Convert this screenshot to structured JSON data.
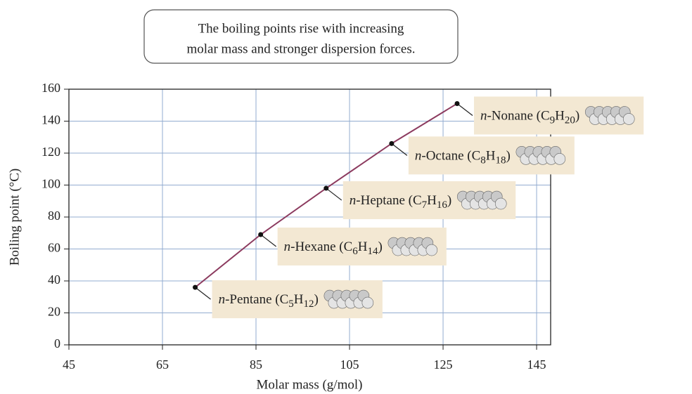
{
  "chart_data": {
    "type": "line",
    "annotation": [
      "The boiling points rise with increasing",
      "molar mass and stronger dispersion forces."
    ],
    "xlabel": "Molar mass (g/mol)",
    "ylabel": "Boiling point (°C)",
    "x": [
      72,
      86,
      100,
      114,
      128
    ],
    "values": [
      36,
      69,
      98,
      126,
      151
    ],
    "point_labels": [
      [
        "n",
        "-Pentane (C",
        "5",
        "H",
        "12",
        ")"
      ],
      [
        "n",
        "-Hexane (C",
        "6",
        "H",
        "14",
        ")"
      ],
      [
        "n",
        "-Heptane (C",
        "7",
        "H",
        "16",
        ")"
      ],
      [
        "n",
        "-Octane (C",
        "8",
        "H",
        "18",
        ")"
      ],
      [
        "n",
        "-Nonane (C",
        "9",
        "H",
        "20",
        ")"
      ]
    ],
    "color": "#8c3b5f",
    "xlim": [
      45,
      148
    ],
    "xticks": [
      45,
      65,
      85,
      105,
      125,
      145
    ],
    "ylim": [
      0,
      160
    ],
    "yticks": [
      0,
      20,
      40,
      60,
      80,
      100,
      120,
      140,
      160
    ],
    "grid": true,
    "grid_color": "#93acd0",
    "label_box_color": "#f3e8d3"
  }
}
